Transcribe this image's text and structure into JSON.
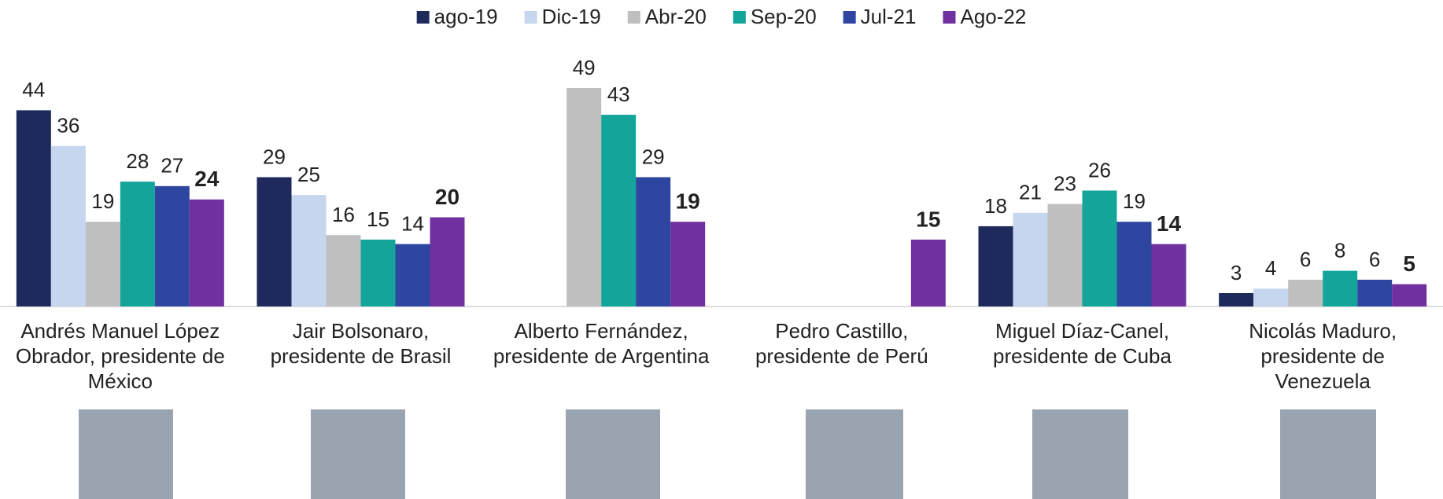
{
  "chart_data": {
    "type": "bar",
    "categories": [
      [
        "Andrés Manuel López",
        "Obrador, presidente de",
        "México"
      ],
      [
        "Jair Bolsonaro,",
        "presidente de Brasil"
      ],
      [
        "Alberto Fernández,",
        "presidente de Argentina"
      ],
      [
        "Pedro Castillo,",
        "presidente de Perú"
      ],
      [
        "Miguel Díaz-Canel,",
        "presidente de Cuba"
      ],
      [
        "Nicolás Maduro,",
        "presidente de",
        "Venezuela"
      ]
    ],
    "series": [
      {
        "name": "ago-19",
        "color": "#1f2a5c",
        "values": [
          44,
          29,
          null,
          null,
          18,
          3
        ]
      },
      {
        "name": "Dic-19",
        "color": "#c5d6ee",
        "values": [
          36,
          25,
          null,
          null,
          21,
          4
        ]
      },
      {
        "name": "Abr-20",
        "color": "#bfbfbf",
        "values": [
          19,
          16,
          49,
          null,
          23,
          6
        ]
      },
      {
        "name": "Sep-20",
        "color": "#13a59a",
        "values": [
          28,
          15,
          43,
          null,
          26,
          8
        ]
      },
      {
        "name": "Jul-21",
        "color": "#2e46a0",
        "values": [
          27,
          14,
          29,
          null,
          19,
          6
        ]
      },
      {
        "name": "Ago-22",
        "color": "#7030a0",
        "values": [
          24,
          20,
          19,
          15,
          14,
          5
        ],
        "bold": true
      }
    ]
  }
}
